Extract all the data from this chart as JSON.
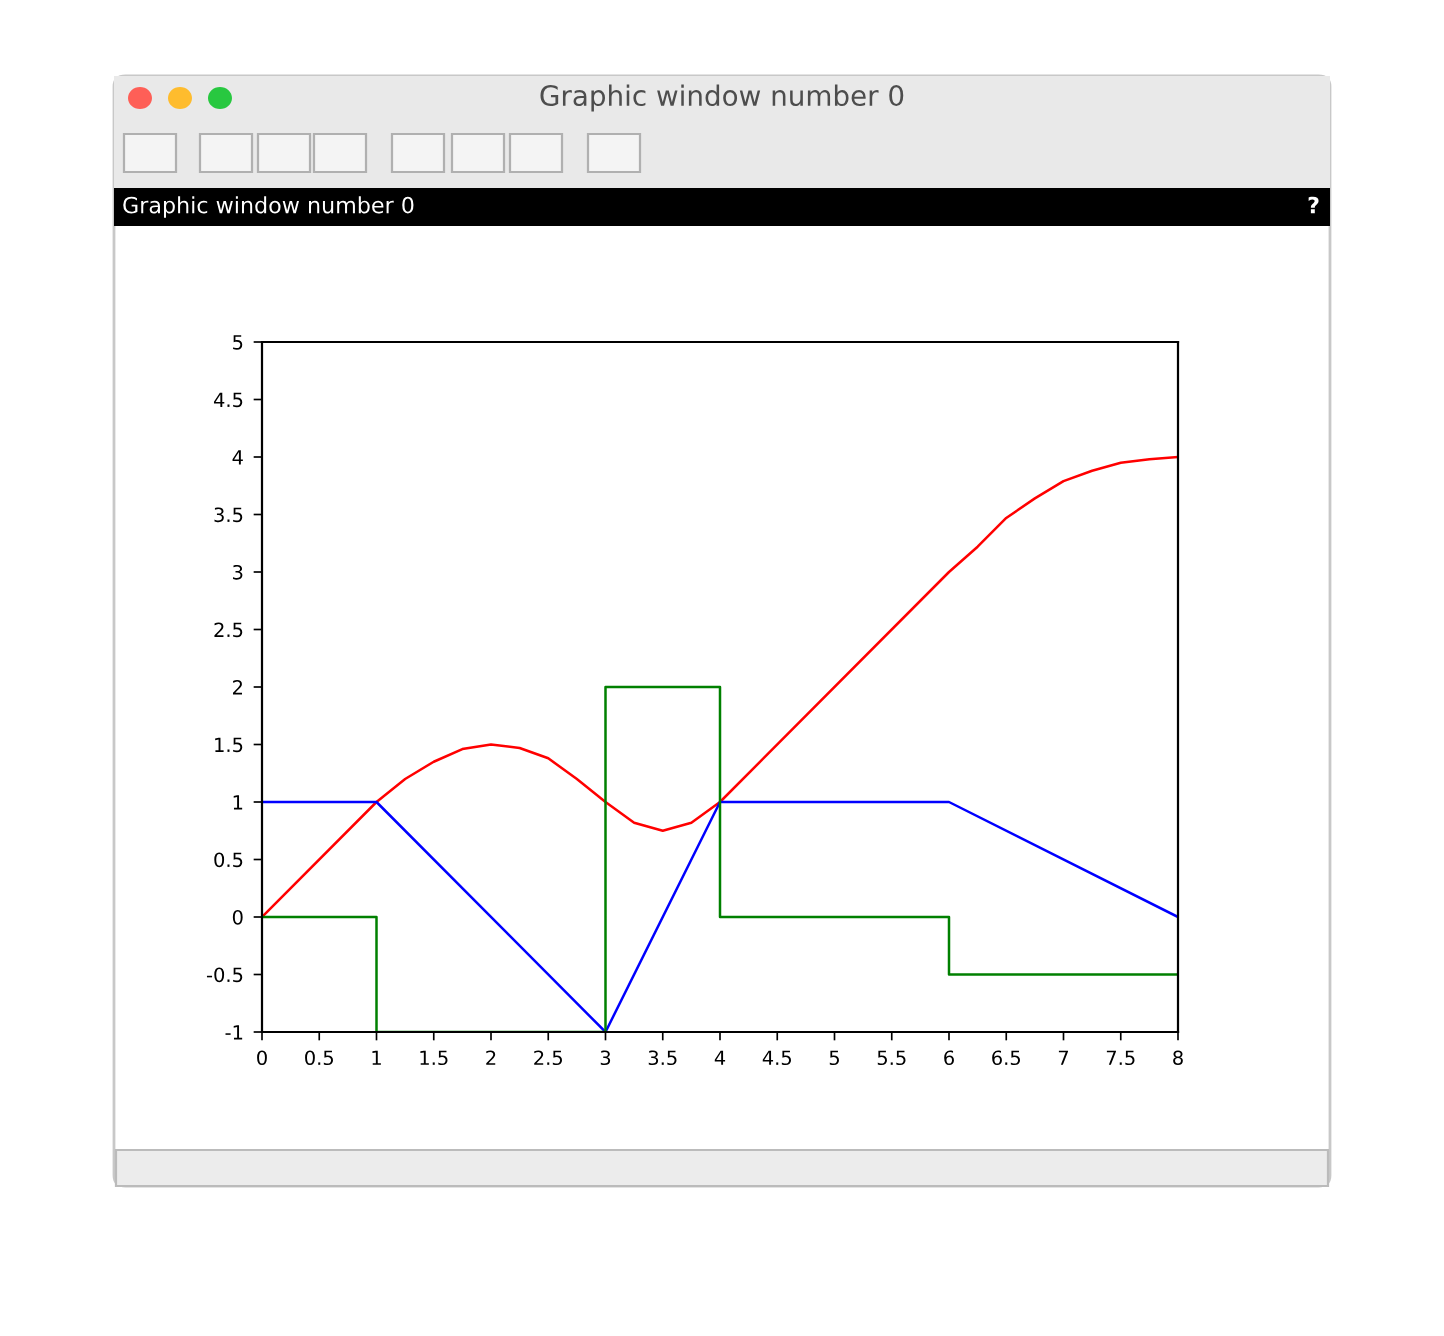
{
  "chart_data": {
    "type": "line",
    "title": "Graphic window number 0",
    "subtitle": "Graphic window number 0",
    "annotations": [
      "?"
    ],
    "xlim": [
      0,
      8
    ],
    "ylim": [
      -1,
      5
    ],
    "xticks": [
      0,
      0.5,
      1,
      1.5,
      2,
      2.5,
      3,
      3.5,
      4,
      4.5,
      5,
      5.5,
      6,
      6.5,
      7,
      7.5,
      8
    ],
    "yticks": [
      -1,
      -0.5,
      0,
      0.5,
      1,
      1.5,
      2,
      2.5,
      3,
      3.5,
      4,
      4.5,
      5
    ],
    "marker": "none",
    "line_style": "solid",
    "series": [
      {
        "color": "#ff0000",
        "x": [
          0,
          1,
          1.25,
          1.5,
          1.75,
          2,
          2.25,
          2.5,
          2.75,
          3,
          3.25,
          3.5,
          3.75,
          4,
          6,
          6.25,
          6.5,
          6.75,
          7,
          7.25,
          7.5,
          7.75,
          8
        ],
        "values": [
          0,
          1,
          1.2,
          1.35,
          1.46,
          1.5,
          1.47,
          1.38,
          1.2,
          1,
          0.82,
          0.75,
          0.82,
          1,
          3,
          3.22,
          3.47,
          3.64,
          3.79,
          3.88,
          3.95,
          3.98,
          4
        ]
      },
      {
        "color": "#0000ff",
        "x": [
          0,
          1,
          3,
          4,
          6,
          8
        ],
        "values": [
          1,
          1,
          -1,
          1,
          1,
          0
        ]
      },
      {
        "color": "#008000",
        "x": [
          0,
          1,
          1,
          3,
          3,
          4,
          4,
          6,
          6,
          8
        ],
        "values": [
          0,
          0,
          -1,
          -1,
          2,
          2,
          0,
          0,
          -0.5,
          -0.5
        ]
      }
    ]
  }
}
